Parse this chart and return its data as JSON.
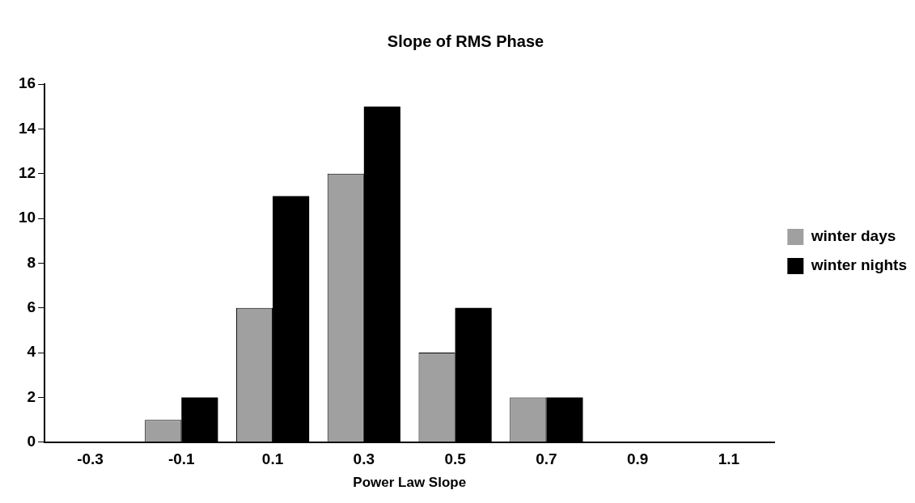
{
  "chart_data": {
    "type": "bar",
    "title": "Slope of RMS Phase",
    "xlabel": "Power Law Slope",
    "categories": [
      "-0.3",
      "-0.1",
      "0.1",
      "0.3",
      "0.5",
      "0.7",
      "0.9",
      "1.1"
    ],
    "series": [
      {
        "name": "winter days",
        "color": "#a0a0a0",
        "values": [
          0,
          1,
          6,
          12,
          4,
          2,
          0,
          0
        ]
      },
      {
        "name": "winter nights",
        "color": "#000000",
        "values": [
          0,
          2,
          11,
          15,
          6,
          2,
          0,
          0
        ]
      }
    ],
    "ylim": [
      0,
      16
    ],
    "yticks": [
      0,
      2,
      4,
      6,
      8,
      10,
      12,
      14,
      16
    ],
    "grid": false,
    "legend": "right"
  }
}
